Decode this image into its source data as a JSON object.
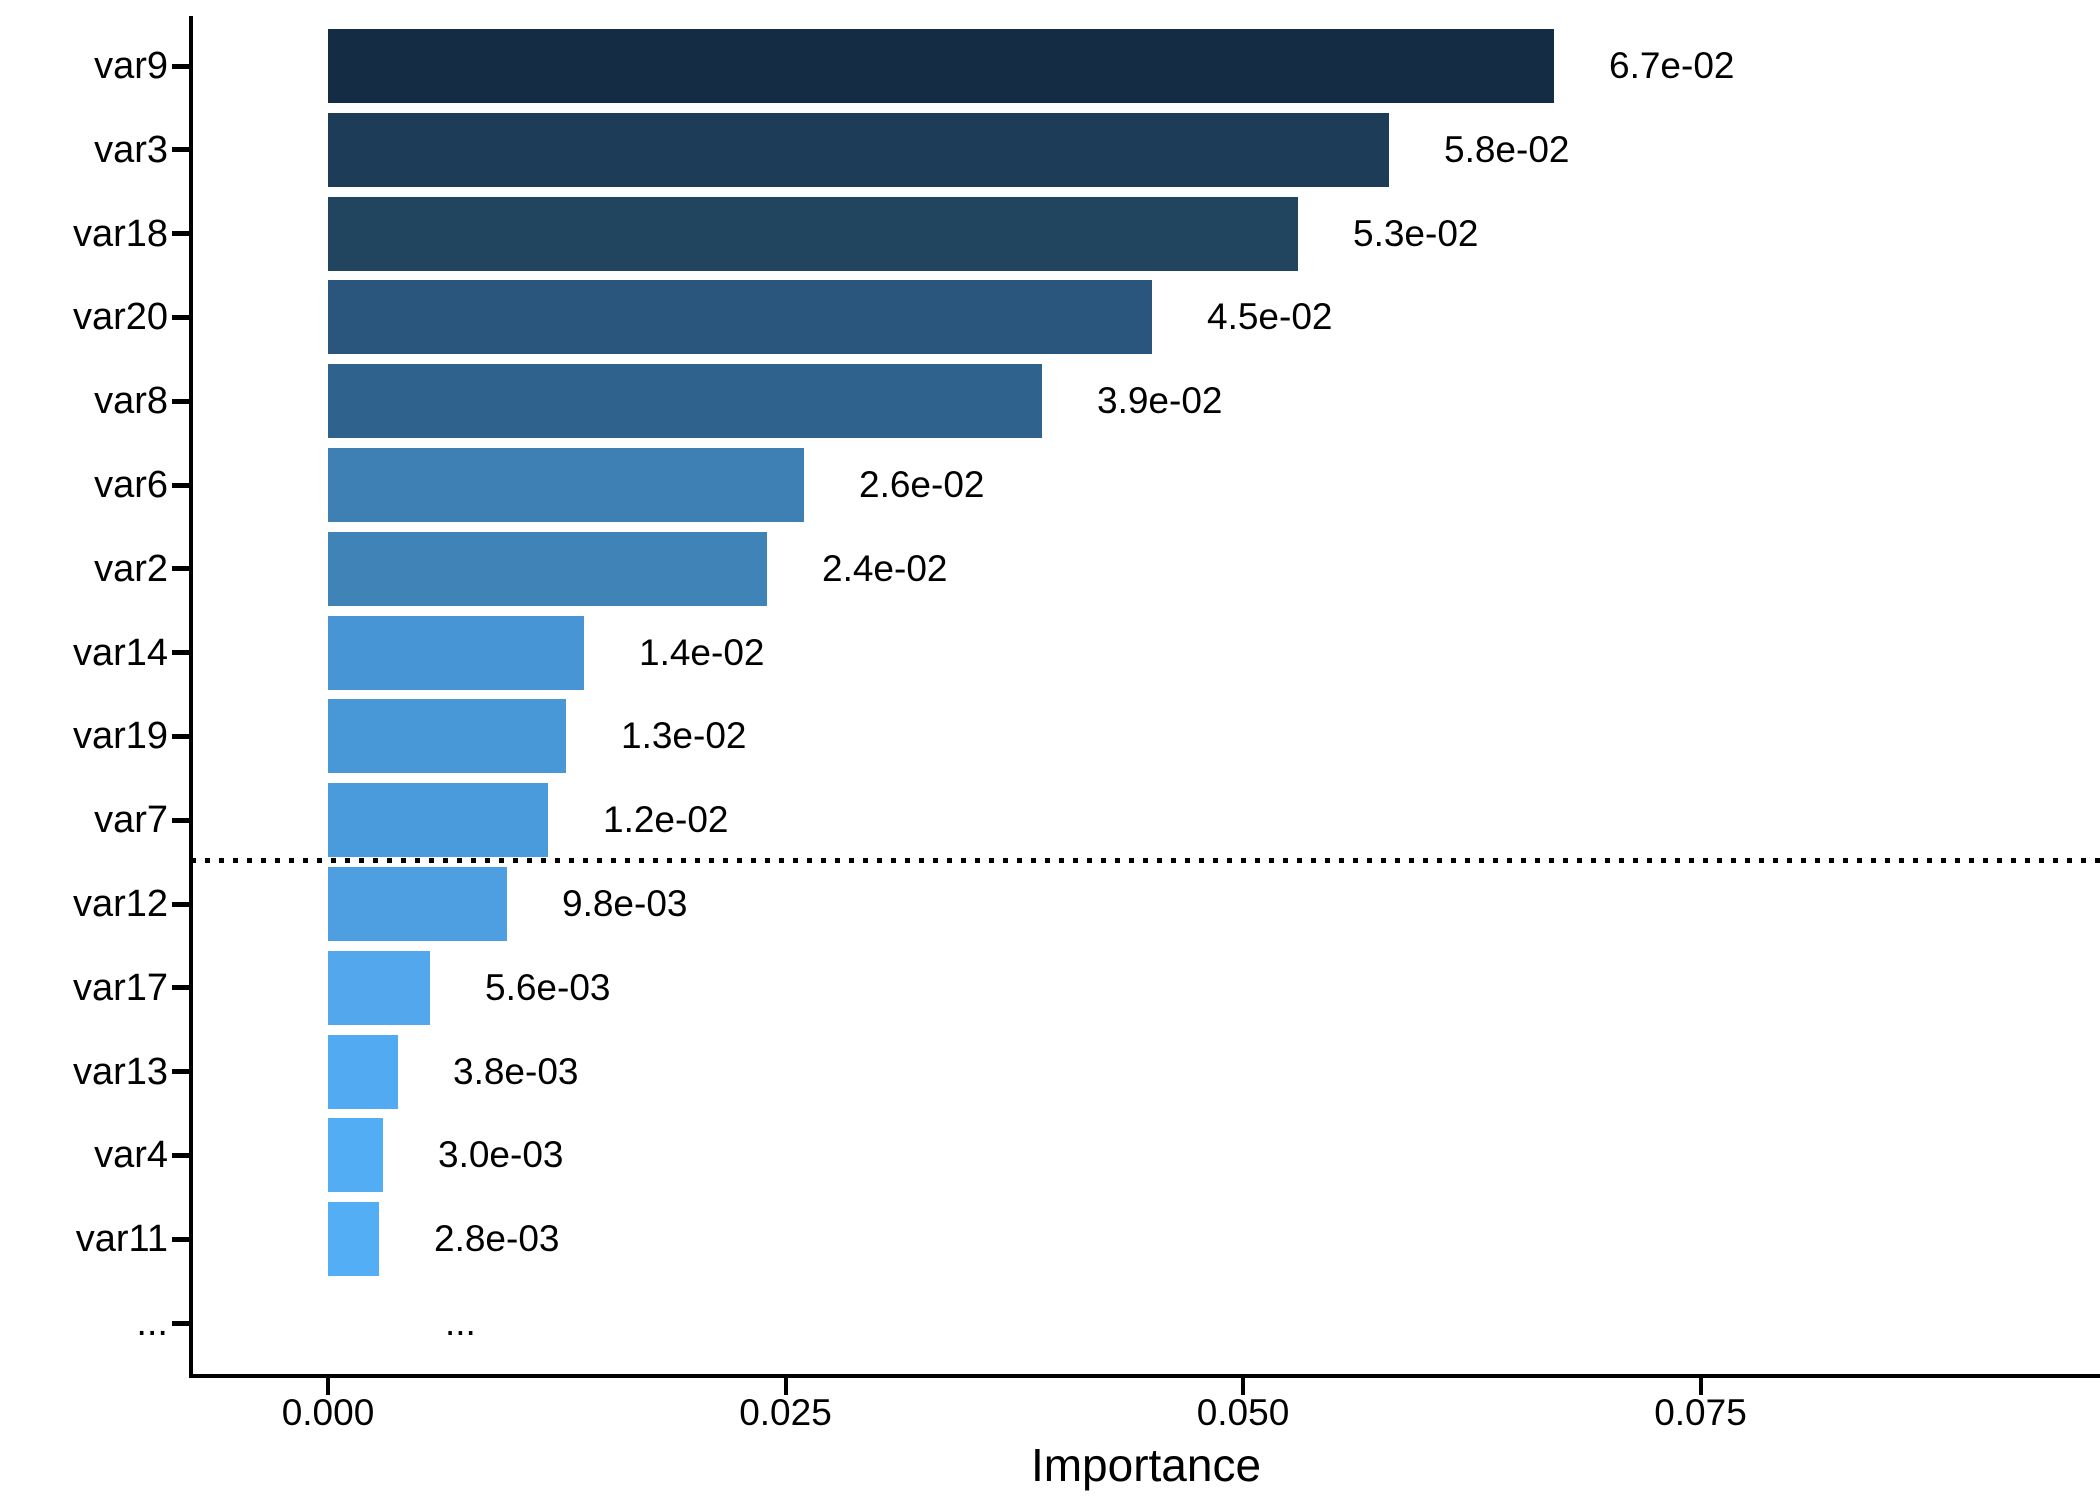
{
  "chart_data": {
    "type": "bar",
    "orientation": "horizontal",
    "title": "",
    "xlabel": "Importance",
    "ylabel": "",
    "grid": false,
    "legend": false,
    "background": "#ffffff",
    "axis_color": "#000000",
    "text_color": "#000000",
    "xlim": [
      -0.0075,
      0.0965
    ],
    "x_ticks": [
      {
        "label": "0.000",
        "value": 0.0
      },
      {
        "label": "0.025",
        "value": 0.025
      },
      {
        "label": "0.050",
        "value": 0.05
      },
      {
        "label": "0.075",
        "value": 0.075
      }
    ],
    "bars": [
      {
        "label": "var9",
        "value": 0.067,
        "value_label": "6.7e-02",
        "color": "#142c44"
      },
      {
        "label": "var3",
        "value": 0.058,
        "value_label": "5.8e-02",
        "color": "#1d3c58"
      },
      {
        "label": "var18",
        "value": 0.053,
        "value_label": "5.3e-02",
        "color": "#21455f"
      },
      {
        "label": "var20",
        "value": 0.045,
        "value_label": "4.5e-02",
        "color": "#2a567e"
      },
      {
        "label": "var8",
        "value": 0.039,
        "value_label": "3.9e-02",
        "color": "#2f628d"
      },
      {
        "label": "var6",
        "value": 0.026,
        "value_label": "2.6e-02",
        "color": "#3e80b4"
      },
      {
        "label": "var2",
        "value": 0.024,
        "value_label": "2.4e-02",
        "color": "#4083b7"
      },
      {
        "label": "var14",
        "value": 0.014,
        "value_label": "1.4e-02",
        "color": "#4795d4"
      },
      {
        "label": "var19",
        "value": 0.013,
        "value_label": "1.3e-02",
        "color": "#4898d8"
      },
      {
        "label": "var7",
        "value": 0.012,
        "value_label": "1.2e-02",
        "color": "#499bdc"
      },
      {
        "label": "var12",
        "value": 0.0098,
        "value_label": "9.8e-03",
        "color": "#4d9fe2"
      },
      {
        "label": "var17",
        "value": 0.0056,
        "value_label": "5.6e-03",
        "color": "#53a7ec"
      },
      {
        "label": "var13",
        "value": 0.0038,
        "value_label": "3.8e-03",
        "color": "#52abf2"
      },
      {
        "label": "var4",
        "value": 0.003,
        "value_label": "3.0e-03",
        "color": "#53adf4"
      },
      {
        "label": "var11",
        "value": 0.0028,
        "value_label": "2.8e-03",
        "color": "#54aef5"
      },
      {
        "label": "...",
        "value": null,
        "value_label": "...",
        "color": null
      }
    ],
    "threshold_line": {
      "style": "dotted",
      "color": "#000000",
      "position": "between var7 and var12"
    }
  }
}
